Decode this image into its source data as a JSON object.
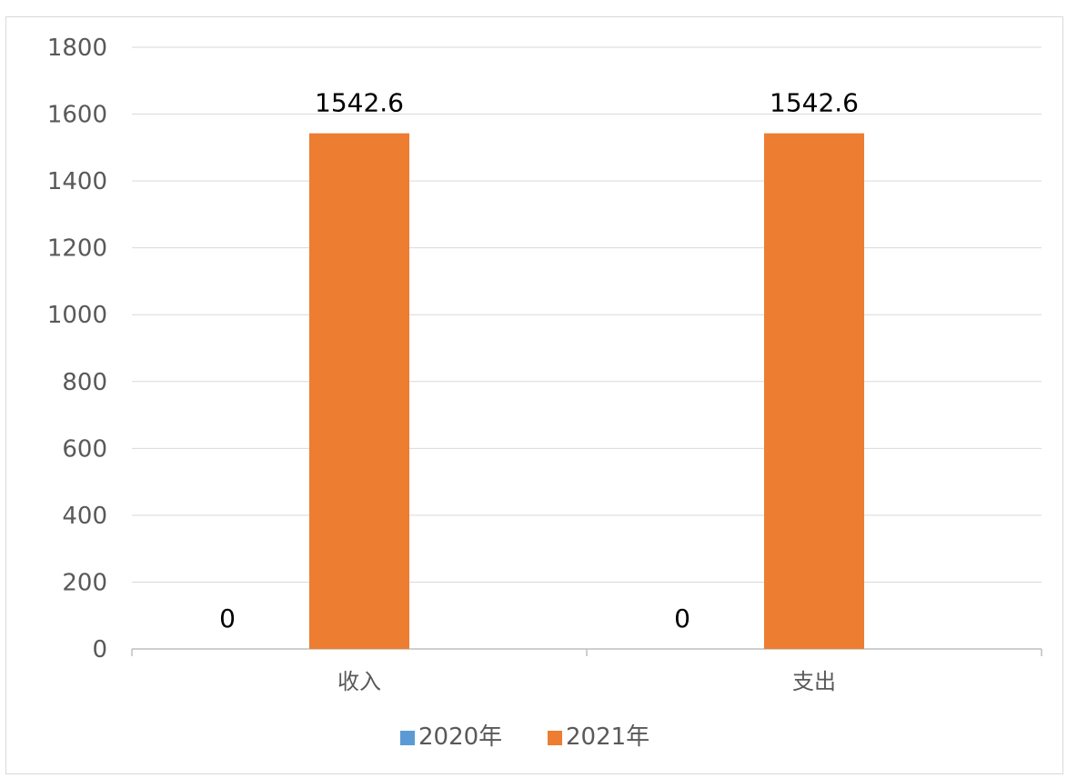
{
  "chart_data": {
    "type": "bar",
    "categories": [
      "收入",
      "支出"
    ],
    "series": [
      {
        "name": "2020年",
        "values": [
          0,
          0
        ],
        "color": "#5b9bd5"
      },
      {
        "name": "2021年",
        "values": [
          1542.6,
          1542.6
        ],
        "color": "#ed7d31"
      }
    ],
    "data_labels": [
      [
        "0",
        "0"
      ],
      [
        "1542.6",
        "1542.6"
      ]
    ],
    "y_ticks": [
      "0",
      "200",
      "400",
      "600",
      "800",
      "1000",
      "1200",
      "1400",
      "1600",
      "1800"
    ],
    "ylim": [
      0,
      1800
    ],
    "grid": true,
    "legend_position": "bottom"
  }
}
